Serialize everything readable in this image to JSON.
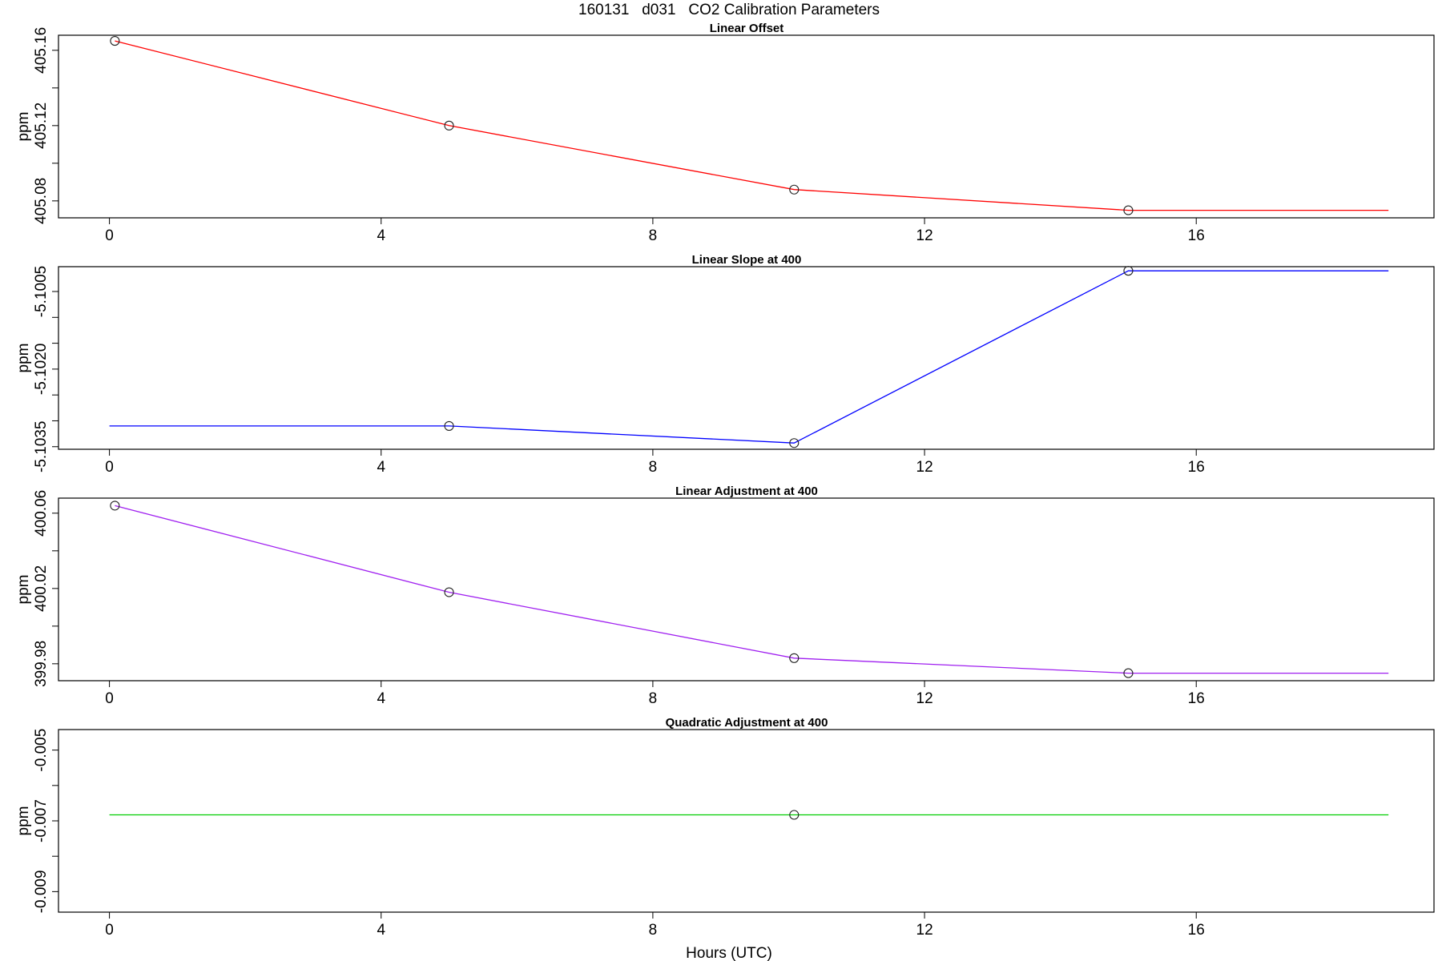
{
  "figure": {
    "title": "160131   d031   CO2 Calibration Parameters",
    "xlabel": "Hours (UTC)"
  },
  "chart_data": [
    {
      "type": "line",
      "title": "Linear Offset",
      "ylabel": "ppm",
      "xlabel": "",
      "color": "#ff0000",
      "marker": "open-circle",
      "x_ticks": [
        0,
        4,
        8,
        12,
        16
      ],
      "x_tick_labels": [
        "0",
        "4",
        "8",
        "12",
        "16"
      ],
      "y_ticks": [
        405.08,
        405.1,
        405.12,
        405.14,
        405.16
      ],
      "y_tick_labels": [
        "405.08",
        "",
        "405.12",
        "",
        "405.16"
      ],
      "xlim": [
        -0.75,
        19.5
      ],
      "ylim": [
        405.071,
        405.168
      ],
      "x": [
        0.08,
        5.0,
        10.08,
        15.0,
        18.83
      ],
      "values": [
        405.165,
        405.12,
        405.086,
        405.075,
        405.075
      ],
      "markers": [
        true,
        true,
        true,
        true,
        false
      ]
    },
    {
      "type": "line",
      "title": "Linear Slope at 400",
      "ylabel": "ppm",
      "xlabel": "",
      "color": "#0000ff",
      "marker": "open-circle",
      "x_ticks": [
        0,
        4,
        8,
        12,
        16
      ],
      "x_tick_labels": [
        "0",
        "4",
        "8",
        "12",
        "16"
      ],
      "y_ticks": [
        -5.1035,
        -5.103,
        -5.1025,
        -5.102,
        -5.1015,
        -5.101,
        -5.1005
      ],
      "y_tick_labels": [
        "-5.1035",
        "",
        "",
        "-5.1020",
        "",
        "",
        "-5.1005"
      ],
      "xlim": [
        -0.75,
        19.5
      ],
      "ylim": [
        -5.10355,
        -5.10002
      ],
      "x": [
        0.0,
        5.0,
        10.08,
        15.0,
        18.83
      ],
      "values": [
        -5.1031,
        -5.1031,
        -5.10343,
        -5.1001,
        -5.1001
      ],
      "markers": [
        false,
        true,
        true,
        true,
        false
      ]
    },
    {
      "type": "line",
      "title": "Linear Adjustment at 400",
      "ylabel": "ppm",
      "xlabel": "",
      "color": "#a020f0",
      "marker": "open-circle",
      "x_ticks": [
        0,
        4,
        8,
        12,
        16
      ],
      "x_tick_labels": [
        "0",
        "4",
        "8",
        "12",
        "16"
      ],
      "y_ticks": [
        399.98,
        400.0,
        400.02,
        400.04,
        400.06
      ],
      "y_tick_labels": [
        "399.98",
        "",
        "400.02",
        "",
        "400.06"
      ],
      "xlim": [
        -0.75,
        19.5
      ],
      "ylim": [
        399.971,
        400.068
      ],
      "x": [
        0.08,
        5.0,
        10.08,
        15.0,
        18.83
      ],
      "values": [
        400.064,
        400.018,
        399.983,
        399.975,
        399.975
      ],
      "markers": [
        true,
        true,
        true,
        true,
        false
      ]
    },
    {
      "type": "line",
      "title": "Quadratic Adjustment at 400",
      "ylabel": "ppm",
      "xlabel": "Hours (UTC)",
      "color": "#00cd00",
      "marker": "open-circle",
      "x_ticks": [
        0,
        4,
        8,
        12,
        16
      ],
      "x_tick_labels": [
        "0",
        "4",
        "8",
        "12",
        "16"
      ],
      "y_ticks": [
        -0.009,
        -0.008,
        -0.007,
        -0.006,
        -0.005
      ],
      "y_tick_labels": [
        "-0.009",
        "",
        "-0.007",
        "",
        "-0.005"
      ],
      "xlim": [
        -0.75,
        19.5
      ],
      "ylim": [
        -0.00958,
        -0.00442
      ],
      "x": [
        0.0,
        10.08,
        18.83
      ],
      "values": [
        -0.00683,
        -0.00683,
        -0.00683
      ],
      "markers": [
        false,
        true,
        false
      ]
    }
  ]
}
